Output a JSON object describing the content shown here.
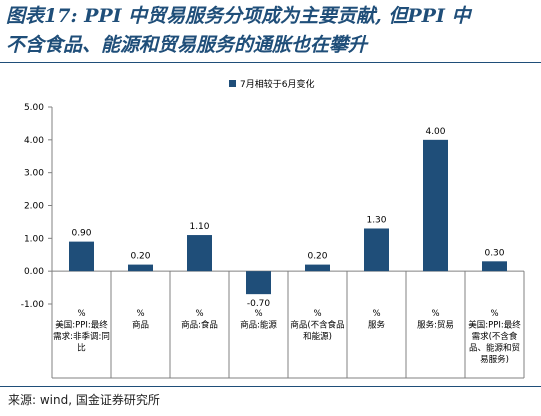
{
  "title": {
    "line1": "图表17: PPI 中贸易服务分项成为主要贡献, 但PPI 中",
    "line2": "不含食品、能源和贸易服务的通胀也在攀升"
  },
  "source": "来源: wind, 国金证券研究所",
  "colors": {
    "bar": "#1f4e79",
    "title": "#1f4e79"
  },
  "chart_data": {
    "type": "bar",
    "title": "",
    "xlabel": "",
    "ylabel": "",
    "ylim": [
      -1.0,
      5.0
    ],
    "yticks": [
      "5.00",
      "4.00",
      "3.00",
      "2.00",
      "1.00",
      "0.00",
      "-1.00"
    ],
    "legend": {
      "position": "top-center",
      "label": "7月相较于6月变化"
    },
    "grid": false,
    "categories": [
      [
        "%",
        "美国:PPI:最终",
        "需求:非季调:同",
        "比"
      ],
      [
        "%",
        "商品"
      ],
      [
        "%",
        "商品:食品"
      ],
      [
        "%",
        "商品:能源"
      ],
      [
        "%",
        "商品(不含食品",
        "和能源)"
      ],
      [
        "%",
        "服务"
      ],
      [
        "%",
        "服务:贸易"
      ],
      [
        "%",
        "美国:PPI:最终",
        "需求(不含食",
        "品、能源和贸",
        "易服务)"
      ]
    ],
    "series": [
      {
        "name": "7月相较于6月变化",
        "values": [
          0.9,
          0.2,
          1.1,
          -0.7,
          0.2,
          1.3,
          4.0,
          0.3
        ],
        "labels": [
          "0.90",
          "0.20",
          "1.10",
          "-0.70",
          "0.20",
          "1.30",
          "4.00",
          "0.30"
        ]
      }
    ]
  }
}
